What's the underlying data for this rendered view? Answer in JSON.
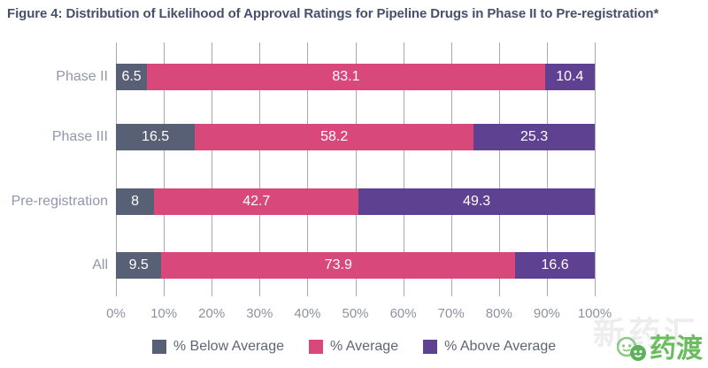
{
  "figure": {
    "title": "Figure 4: Distribution of Likelihood of Approval Ratings for Pipeline Drugs in Phase II to Pre-registration*"
  },
  "chart_data": {
    "type": "bar",
    "orientation": "horizontal",
    "stacked": true,
    "title": "Figure 4: Distribution of Likelihood of Approval Ratings for Pipeline Drugs in Phase II to Pre-registration*",
    "categories": [
      "Phase II",
      "Phase III",
      "Pre-registration",
      "All"
    ],
    "series": [
      {
        "name": "% Below Average",
        "color": "#576074",
        "values": [
          6.5,
          16.5,
          8,
          9.5
        ]
      },
      {
        "name": "% Average",
        "color": "#d8487b",
        "values": [
          83.1,
          58.2,
          42.7,
          73.9
        ]
      },
      {
        "name": "% Above Average",
        "color": "#5f4191",
        "values": [
          10.4,
          25.3,
          49.3,
          16.6
        ]
      }
    ],
    "x_ticks": [
      "0%",
      "10%",
      "20%",
      "30%",
      "40%",
      "50%",
      "60%",
      "70%",
      "80%",
      "90%",
      "100%"
    ],
    "xlim": [
      0,
      100
    ],
    "grid": "vertical",
    "gridline_color": "#a9a9a9",
    "legend_position": "bottom",
    "value_label_color": "#ffffff"
  },
  "watermark": {
    "logo_text": "药渡",
    "background_text": "新药汇",
    "logo_color": "#6abc5f"
  }
}
